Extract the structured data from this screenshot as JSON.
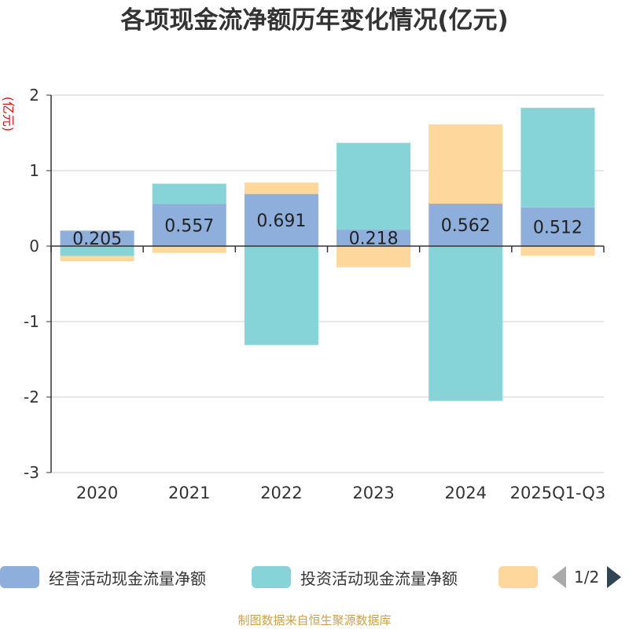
{
  "title": "各项现金流净额历年变化情况(亿元)",
  "source": "制图数据来自恒生聚源数据库",
  "colors": {
    "operating": "#8eaedb",
    "investing": "#86d4d8",
    "financing": "#fdd79b",
    "grid": "#cccccc",
    "axis": "#333333",
    "ylabel": "#e01010"
  },
  "legend_pager": {
    "text": "1/2"
  },
  "chart_data": {
    "type": "bar",
    "stacked": true,
    "title": "各项现金流净额历年变化情况(亿元)",
    "ylabel": "(亿元)",
    "xlabel": "",
    "ylim": [
      -3,
      2
    ],
    "yticks": [
      2,
      1,
      0,
      -1,
      -2,
      -3
    ],
    "ytick_labels": [
      "2",
      "1",
      "0",
      "-1",
      "-2",
      "-3"
    ],
    "grid": true,
    "legend_position": "bottom",
    "categories": [
      "2020",
      "2021",
      "2022",
      "2023",
      "2024",
      "2025Q1-Q3"
    ],
    "series": [
      {
        "name": "经营活动现金流量净额",
        "color_key": "operating",
        "show_in_legend": true,
        "label_values": true,
        "values": [
          0.205,
          0.557,
          0.691,
          0.218,
          0.562,
          0.512
        ],
        "labels": [
          "0.205",
          "0.557",
          "0.691",
          "0.218",
          "0.562",
          "0.512"
        ]
      },
      {
        "name": "投资活动现金流量净额",
        "color_key": "investing",
        "show_in_legend": true,
        "label_values": false,
        "values": [
          -0.13,
          0.27,
          -1.31,
          1.15,
          -2.05,
          1.32
        ]
      },
      {
        "name": "",
        "color_key": "financing",
        "show_in_legend": true,
        "label_values": false,
        "values": [
          -0.07,
          -0.09,
          0.15,
          -0.28,
          1.05,
          -0.13
        ]
      }
    ]
  }
}
